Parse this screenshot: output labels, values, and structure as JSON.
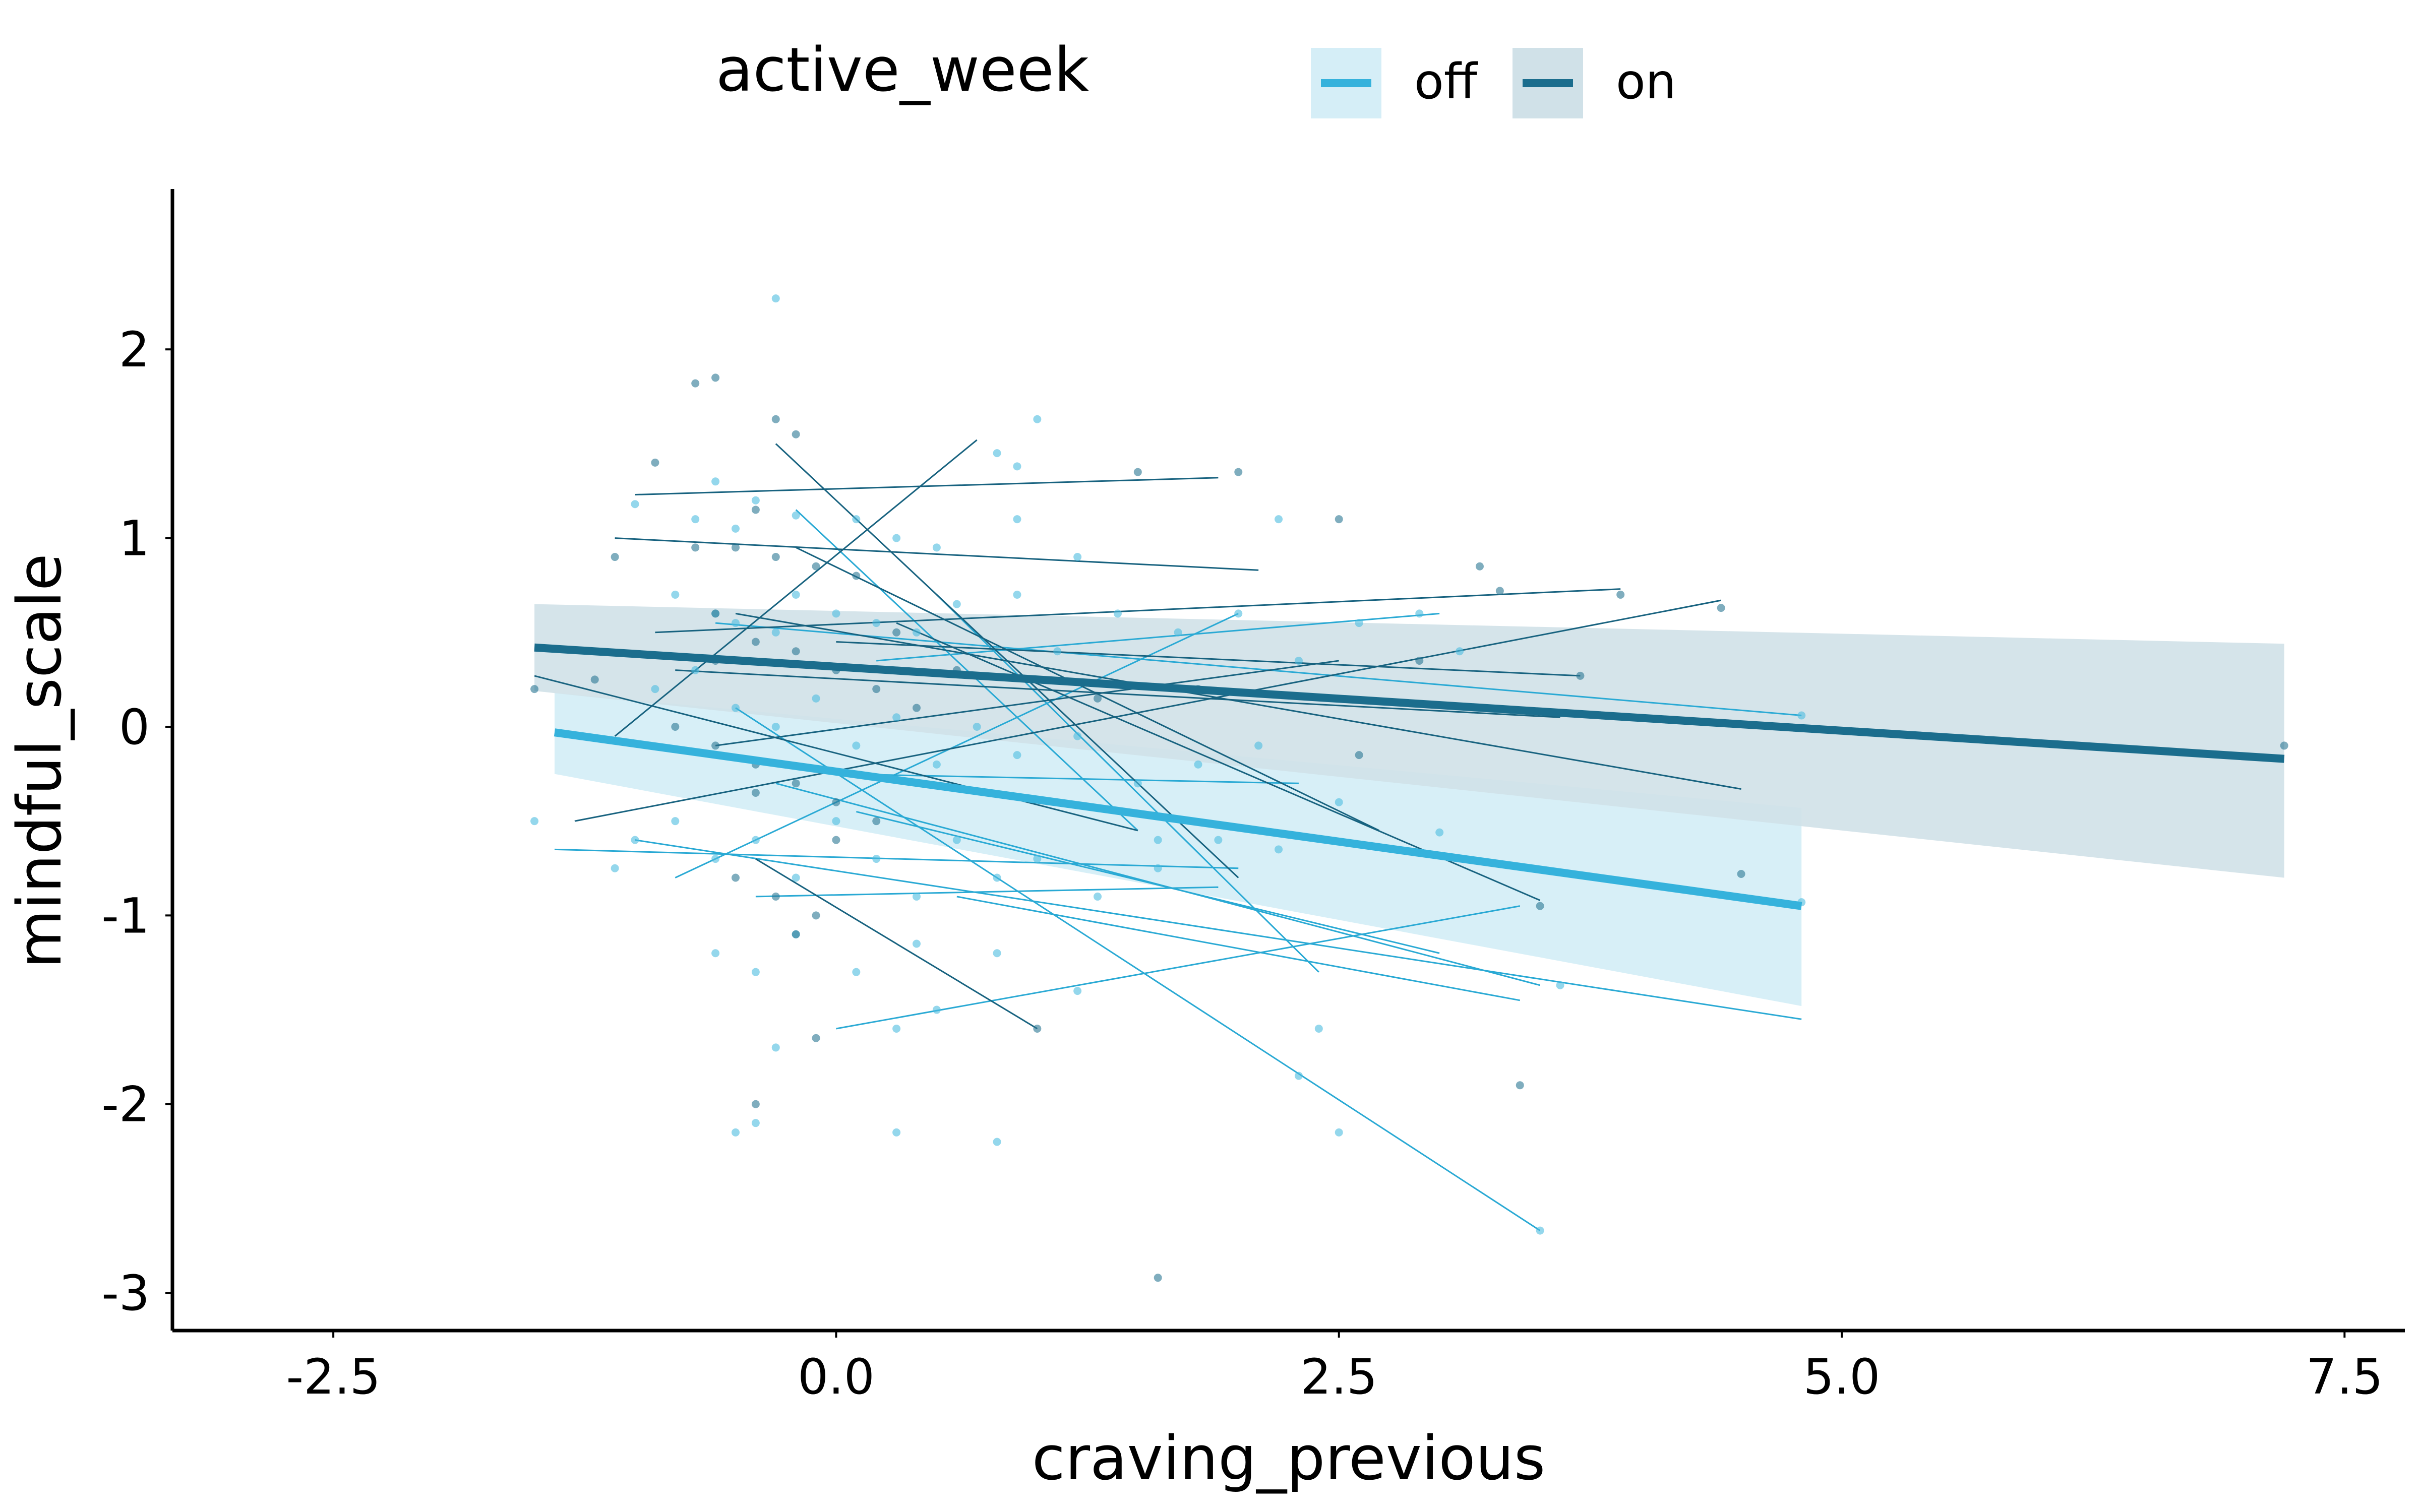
{
  "chart_data": {
    "type": "scatter",
    "title": "",
    "xlabel": "craving_previous",
    "ylabel": "mindful_scale",
    "xlim": [
      -3.3,
      7.8
    ],
    "ylim": [
      -3.2,
      2.85
    ],
    "grid": false,
    "legend_position": "top",
    "x_ticks": [
      {
        "value": -2.5,
        "label": "-2.5"
      },
      {
        "value": 0.0,
        "label": "0.0"
      },
      {
        "value": 2.5,
        "label": "2.5"
      },
      {
        "value": 5.0,
        "label": "5.0"
      },
      {
        "value": 7.5,
        "label": "7.5"
      }
    ],
    "y_ticks": [
      {
        "value": 2,
        "label": "2"
      },
      {
        "value": 1,
        "label": "1"
      },
      {
        "value": 0,
        "label": "0"
      },
      {
        "value": -1,
        "label": "-1"
      },
      {
        "value": -2,
        "label": "-2"
      },
      {
        "value": -3,
        "label": "-3"
      }
    ],
    "legend": {
      "title": "active_week",
      "items": [
        {
          "label": "off",
          "line_color": "#35b2dc",
          "fill_color": "#d5eef7"
        },
        {
          "label": "on",
          "line_color": "#1b6d8d",
          "fill_color": "#d0e1e8"
        }
      ]
    },
    "colors": {
      "off_points": "#4dbde0",
      "on_points": "#2a7792",
      "off_lines": "#29a9d4",
      "on_lines": "#17627f"
    },
    "series": [
      {
        "name": "off",
        "fit": {
          "x": [
            -1.4,
            4.8
          ],
          "y": [
            -0.03,
            -0.95
          ]
        },
        "ribbon": {
          "x": [
            -1.4,
            4.8
          ],
          "lower": [
            -0.25,
            -1.48
          ],
          "upper": [
            0.18,
            -0.43
          ]
        },
        "points": [
          [
            -0.3,
            2.27
          ],
          [
            0.8,
            1.45
          ],
          [
            0.9,
            1.38
          ],
          [
            1.0,
            1.63
          ],
          [
            -1.0,
            1.18
          ],
          [
            -0.6,
            1.3
          ],
          [
            -0.4,
            1.2
          ],
          [
            -0.7,
            1.1
          ],
          [
            -0.5,
            1.05
          ],
          [
            -0.2,
            1.12
          ],
          [
            0.1,
            1.1
          ],
          [
            0.3,
            1.0
          ],
          [
            0.5,
            0.95
          ],
          [
            0.9,
            1.1
          ],
          [
            1.2,
            0.9
          ],
          [
            -0.8,
            0.7
          ],
          [
            -0.6,
            0.6
          ],
          [
            -0.5,
            0.55
          ],
          [
            -0.3,
            0.5
          ],
          [
            -0.2,
            0.7
          ],
          [
            0.0,
            0.6
          ],
          [
            0.2,
            0.55
          ],
          [
            0.4,
            0.5
          ],
          [
            0.6,
            0.65
          ],
          [
            0.9,
            0.7
          ],
          [
            1.1,
            0.4
          ],
          [
            1.4,
            0.6
          ],
          [
            1.7,
            0.5
          ],
          [
            2.0,
            0.6
          ],
          [
            2.3,
            0.35
          ],
          [
            2.6,
            0.55
          ],
          [
            2.9,
            0.6
          ],
          [
            3.1,
            0.4
          ],
          [
            -0.9,
            0.2
          ],
          [
            -0.7,
            0.3
          ],
          [
            -0.5,
            0.1
          ],
          [
            -0.3,
            0.0
          ],
          [
            -0.1,
            0.15
          ],
          [
            0.1,
            -0.1
          ],
          [
            0.3,
            0.05
          ],
          [
            0.5,
            -0.2
          ],
          [
            0.7,
            0.0
          ],
          [
            0.9,
            -0.15
          ],
          [
            1.2,
            -0.05
          ],
          [
            1.5,
            -0.3
          ],
          [
            1.8,
            -0.2
          ],
          [
            2.1,
            -0.1
          ],
          [
            2.5,
            -0.4
          ],
          [
            -1.0,
            -0.6
          ],
          [
            -0.8,
            -0.5
          ],
          [
            -0.6,
            -0.7
          ],
          [
            -0.4,
            -0.6
          ],
          [
            -0.2,
            -0.8
          ],
          [
            0.0,
            -0.5
          ],
          [
            0.2,
            -0.7
          ],
          [
            0.4,
            -0.9
          ],
          [
            0.6,
            -0.6
          ],
          [
            0.8,
            -0.8
          ],
          [
            1.0,
            -0.7
          ],
          [
            1.3,
            -0.9
          ],
          [
            1.6,
            -0.75
          ],
          [
            1.9,
            -0.6
          ],
          [
            2.2,
            -0.65
          ],
          [
            -0.6,
            -1.2
          ],
          [
            -0.4,
            -1.3
          ],
          [
            -0.2,
            -1.1
          ],
          [
            0.1,
            -1.3
          ],
          [
            0.4,
            -1.15
          ],
          [
            0.8,
            -1.2
          ],
          [
            1.2,
            -1.4
          ],
          [
            0.5,
            -1.5
          ],
          [
            0.3,
            -1.6
          ],
          [
            -0.3,
            -1.7
          ],
          [
            -0.5,
            -2.15
          ],
          [
            -0.4,
            -2.1
          ],
          [
            0.3,
            -2.15
          ],
          [
            0.8,
            -2.2
          ],
          [
            2.4,
            -1.6
          ],
          [
            2.5,
            -2.15
          ],
          [
            2.3,
            -1.85
          ],
          [
            3.5,
            -2.67
          ],
          [
            3.6,
            -1.37
          ],
          [
            4.8,
            -0.93
          ],
          [
            4.8,
            0.06
          ],
          [
            -1.5,
            -0.5
          ],
          [
            -1.1,
            -0.75
          ],
          [
            3.0,
            -0.56
          ],
          [
            1.6,
            -0.6
          ],
          [
            2.2,
            1.1
          ]
        ],
        "subjects": [
          [
            [
              -1.4,
              -0.65
            ],
            [
              2.0,
              -0.75
            ]
          ],
          [
            [
              -1.0,
              -0.6
            ],
            [
              4.8,
              -1.55
            ]
          ],
          [
            [
              -0.5,
              0.1
            ],
            [
              3.5,
              -2.67
            ]
          ],
          [
            [
              0.0,
              -1.6
            ],
            [
              3.4,
              -0.95
            ]
          ],
          [
            [
              -0.3,
              -0.3
            ],
            [
              3.5,
              -1.37
            ]
          ],
          [
            [
              -0.8,
              -0.8
            ],
            [
              2.0,
              0.6
            ]
          ],
          [
            [
              -0.6,
              0.55
            ],
            [
              4.8,
              0.06
            ]
          ],
          [
            [
              0.0,
              -0.25
            ],
            [
              2.3,
              -0.3
            ]
          ],
          [
            [
              0.2,
              0.35
            ],
            [
              3.0,
              0.6
            ]
          ],
          [
            [
              -0.2,
              1.15
            ],
            [
              1.5,
              -0.55
            ]
          ],
          [
            [
              0.5,
              0.7
            ],
            [
              2.4,
              -1.3
            ]
          ],
          [
            [
              0.1,
              -0.45
            ],
            [
              3.0,
              -1.2
            ]
          ],
          [
            [
              -0.4,
              -0.9
            ],
            [
              1.9,
              -0.85
            ]
          ],
          [
            [
              0.6,
              -0.9
            ],
            [
              3.4,
              -1.45
            ]
          ]
        ]
      },
      {
        "name": "on",
        "fit": {
          "x": [
            -1.5,
            7.2
          ],
          "y": [
            0.42,
            -0.17
          ]
        },
        "ribbon": {
          "x": [
            -1.5,
            7.2
          ],
          "lower": [
            0.19,
            -0.8
          ],
          "upper": [
            0.65,
            0.44
          ]
        },
        "points": [
          [
            -0.7,
            1.82
          ],
          [
            -0.6,
            1.85
          ],
          [
            -0.3,
            1.63
          ],
          [
            -0.2,
            1.55
          ],
          [
            -0.4,
            1.15
          ],
          [
            -0.5,
            0.95
          ],
          [
            -0.3,
            0.9
          ],
          [
            -0.1,
            0.85
          ],
          [
            0.1,
            0.8
          ],
          [
            -0.6,
            0.6
          ],
          [
            -0.4,
            0.45
          ],
          [
            -0.2,
            0.4
          ],
          [
            0.0,
            0.3
          ],
          [
            0.2,
            0.2
          ],
          [
            0.4,
            0.1
          ],
          [
            -0.8,
            0.0
          ],
          [
            -0.6,
            -0.1
          ],
          [
            -0.4,
            -0.2
          ],
          [
            -0.2,
            -0.3
          ],
          [
            0.0,
            -0.4
          ],
          [
            0.2,
            -0.5
          ],
          [
            -0.5,
            -0.8
          ],
          [
            -0.3,
            -0.9
          ],
          [
            -0.1,
            -1.0
          ],
          [
            -0.2,
            -1.1
          ],
          [
            0.0,
            -0.6
          ],
          [
            -0.4,
            -0.35
          ],
          [
            -0.6,
            0.35
          ],
          [
            0.3,
            0.5
          ],
          [
            0.6,
            0.3
          ],
          [
            1.0,
            -1.6
          ],
          [
            -0.4,
            -2.0
          ],
          [
            -0.1,
            -1.65
          ],
          [
            1.6,
            -2.92
          ],
          [
            3.4,
            -1.9
          ],
          [
            3.5,
            -0.95
          ],
          [
            3.7,
            0.27
          ],
          [
            3.9,
            0.7
          ],
          [
            4.4,
            0.63
          ],
          [
            4.5,
            -0.78
          ],
          [
            7.2,
            -0.1
          ],
          [
            3.2,
            0.85
          ],
          [
            3.3,
            0.72
          ],
          [
            2.5,
            1.1
          ],
          [
            2.0,
            1.35
          ],
          [
            1.5,
            1.35
          ],
          [
            -1.5,
            0.2
          ],
          [
            -1.2,
            0.25
          ],
          [
            -1.1,
            0.9
          ],
          [
            -0.9,
            1.4
          ],
          [
            -0.7,
            0.95
          ],
          [
            2.9,
            0.35
          ],
          [
            2.6,
            -0.15
          ],
          [
            1.3,
            0.15
          ],
          [
            1.8,
            0.2
          ]
        ],
        "subjects": [
          [
            [
              -1.0,
              1.23
            ],
            [
              1.9,
              1.32
            ]
          ],
          [
            [
              -1.1,
              1.0
            ],
            [
              2.1,
              0.83
            ]
          ],
          [
            [
              -1.5,
              0.27
            ],
            [
              1.5,
              -0.55
            ]
          ],
          [
            [
              -1.3,
              -0.5
            ],
            [
              4.4,
              0.67
            ]
          ],
          [
            [
              -0.9,
              0.5
            ],
            [
              3.9,
              0.73
            ]
          ],
          [
            [
              -0.3,
              1.5
            ],
            [
              2.0,
              -0.8
            ]
          ],
          [
            [
              -1.1,
              -0.05
            ],
            [
              0.7,
              1.52
            ]
          ],
          [
            [
              -0.5,
              0.6
            ],
            [
              4.5,
              -0.33
            ]
          ],
          [
            [
              -0.4,
              -0.7
            ],
            [
              1.0,
              -1.6
            ]
          ],
          [
            [
              -0.2,
              0.95
            ],
            [
              2.7,
              -0.55
            ]
          ],
          [
            [
              0.0,
              0.45
            ],
            [
              3.7,
              0.27
            ]
          ],
          [
            [
              -0.6,
              -0.1
            ],
            [
              2.5,
              0.35
            ]
          ],
          [
            [
              0.3,
              0.55
            ],
            [
              3.5,
              -0.92
            ]
          ],
          [
            [
              -0.8,
              0.3
            ],
            [
              3.6,
              0.05
            ]
          ]
        ]
      }
    ]
  }
}
